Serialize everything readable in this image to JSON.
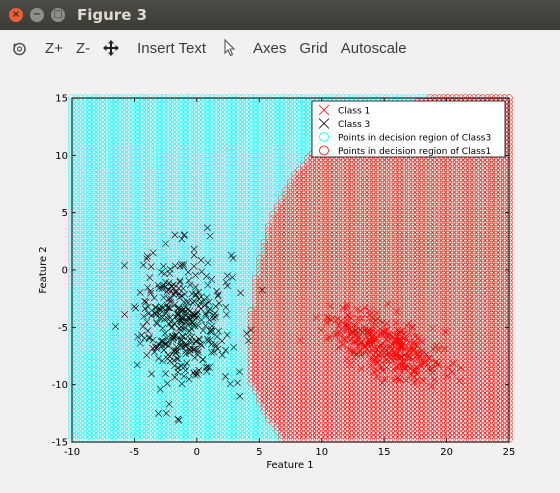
{
  "window": {
    "title": "Figure 3",
    "close_glyph": "×",
    "minimize_glyph": "−",
    "maximize_glyph": "□"
  },
  "toolbar": {
    "rotate_icon": "rotate-icon",
    "zoom_in": "Z+",
    "zoom_out": "Z-",
    "pan_icon": "pan-icon",
    "insert_text": "Insert Text",
    "select_icon": "pointer-icon",
    "axes": "Axes",
    "grid": "Grid",
    "autoscale": "Autoscale"
  },
  "colors": {
    "class1": "#ff0000",
    "class3": "#000000",
    "region_class3": "#00ffff",
    "region_class1": "#ff0000"
  },
  "chart_data": {
    "type": "scatter",
    "xlabel": "Feature 1",
    "ylabel": "Feature 2",
    "xlim": [
      -10,
      25
    ],
    "ylim": [
      -15,
      15
    ],
    "xticks": [
      "-10",
      "-5",
      "0",
      "5",
      "10",
      "15",
      "20",
      "25"
    ],
    "yticks": [
      "15",
      "10",
      "5",
      "0",
      "-5",
      "-10",
      "-15"
    ],
    "legend_position": "top-right",
    "legend": [
      {
        "label": "Class 1",
        "marker": "x",
        "color": "#ff0000"
      },
      {
        "label": "Class 3",
        "marker": "x",
        "color": "#000000"
      },
      {
        "label": "Points in decision region of Class3",
        "marker": "o",
        "color": "#00ffff"
      },
      {
        "label": "Points in decision region of Class1",
        "marker": "o",
        "color": "#ff0000"
      }
    ],
    "decision_boundary": {
      "description": "x-position of boundary between Class3 region (left) and Class1 region (right) per y value",
      "y": [
        15,
        14,
        12,
        10,
        8,
        6,
        4,
        2,
        0,
        -2,
        -4,
        -6,
        -8,
        -10,
        -12,
        -14,
        -15
      ],
      "x": [
        18.5,
        15.5,
        11.5,
        9,
        7.5,
        6.5,
        5.8,
        5.2,
        4.8,
        4.5,
        4.3,
        4.2,
        4.1,
        4.3,
        5.2,
        6.3,
        6.8
      ]
    },
    "series": [
      {
        "name": "Class 3",
        "center": [
          -1,
          -4.5
        ],
        "spread": [
          1.8,
          2.8
        ],
        "count": 350,
        "outliers": [
          [
            -5.8,
            0.4
          ],
          [
            -3.5,
            1.5
          ],
          [
            -2.5,
            2.3
          ],
          [
            -1.2,
            2.7
          ],
          [
            3.5,
            -2
          ],
          [
            2.0,
            -6.2
          ],
          [
            -1.5,
            -13
          ]
        ]
      },
      {
        "name": "Class 1",
        "center": [
          15,
          -6.5
        ],
        "spread": [
          2.6,
          1.2
        ],
        "rotation_deg": -25,
        "count": 320
      }
    ]
  }
}
